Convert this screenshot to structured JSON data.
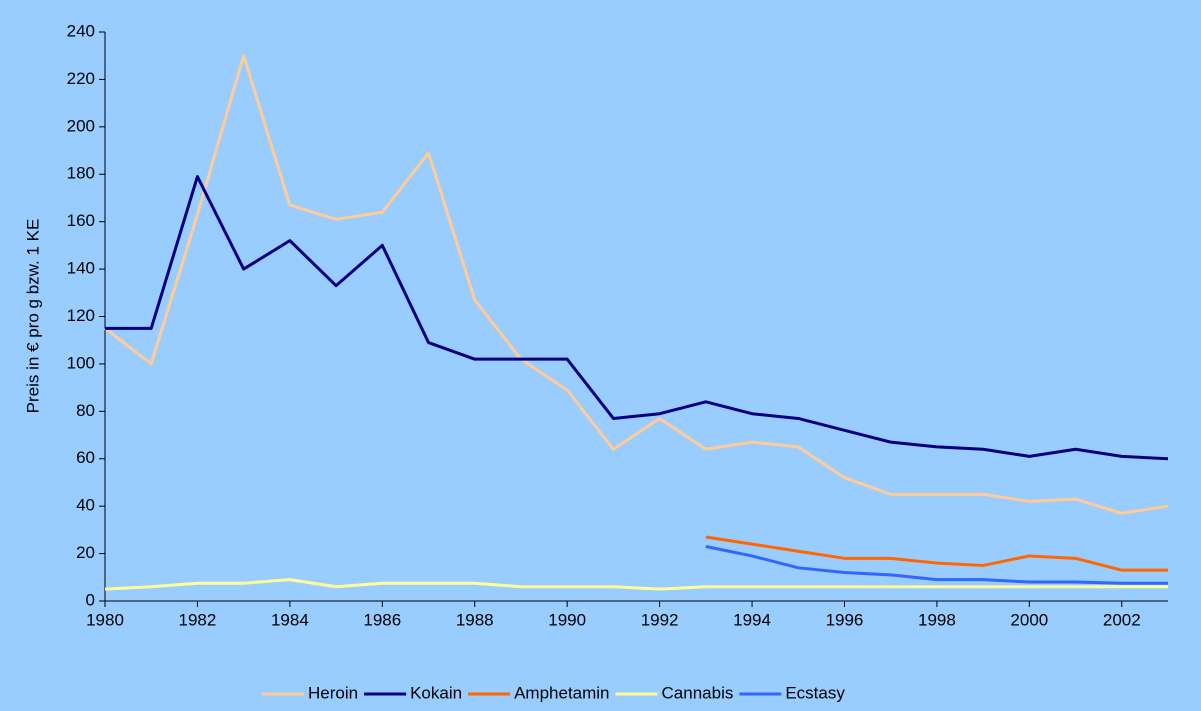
{
  "chart_data": {
    "type": "line",
    "y_label": "Preis in € pro g bzw. 1 KE",
    "x": [
      1980,
      1981,
      1982,
      1983,
      1984,
      1985,
      1986,
      1987,
      1988,
      1989,
      1990,
      1991,
      1992,
      1993,
      1994,
      1995,
      1996,
      1997,
      1998,
      1999,
      2000,
      2001,
      2002,
      2003
    ],
    "series": [
      {
        "name": "Heroin",
        "color": "#FFCC99",
        "values": [
          115,
          100,
          163,
          230,
          167,
          161,
          164,
          189,
          127,
          102,
          89,
          64,
          77,
          64,
          67,
          65,
          52,
          45,
          45,
          45,
          42,
          43,
          37,
          40
        ]
      },
      {
        "name": "Kokain",
        "color": "#000080",
        "values": [
          115,
          115,
          179,
          140,
          152,
          133,
          150,
          109,
          102,
          102,
          102,
          77,
          79,
          84,
          79,
          77,
          72,
          67,
          65,
          64,
          61,
          64,
          61,
          60
        ]
      },
      {
        "name": "Amphetamin",
        "color": "#FF6600",
        "values": [
          null,
          null,
          null,
          null,
          null,
          null,
          null,
          null,
          null,
          null,
          null,
          null,
          null,
          27,
          24,
          21,
          18,
          18,
          16,
          15,
          19,
          18,
          13,
          13
        ]
      },
      {
        "name": "Cannabis",
        "color": "#FFFF99",
        "values": [
          5,
          6,
          7.5,
          7.5,
          9,
          6,
          7.5,
          7.5,
          7.5,
          6,
          6,
          6,
          5,
          6,
          6,
          6,
          6,
          6,
          6,
          6,
          6,
          6,
          6,
          6
        ]
      },
      {
        "name": "Ecstasy",
        "color": "#3366FF",
        "values": [
          null,
          null,
          null,
          null,
          null,
          null,
          null,
          null,
          null,
          null,
          null,
          null,
          null,
          23,
          19,
          14,
          12,
          11,
          9,
          9,
          8,
          8,
          7.5,
          7.5
        ]
      }
    ],
    "xlim": [
      1980,
      2003
    ],
    "xticks": [
      1980,
      1982,
      1984,
      1986,
      1988,
      1990,
      1992,
      1994,
      1996,
      1998,
      2000,
      2002
    ],
    "ylim": [
      0,
      240
    ],
    "yticks": [
      0,
      20,
      40,
      60,
      80,
      100,
      120,
      140,
      160,
      180,
      200,
      220,
      240
    ],
    "legend": "bottom"
  }
}
